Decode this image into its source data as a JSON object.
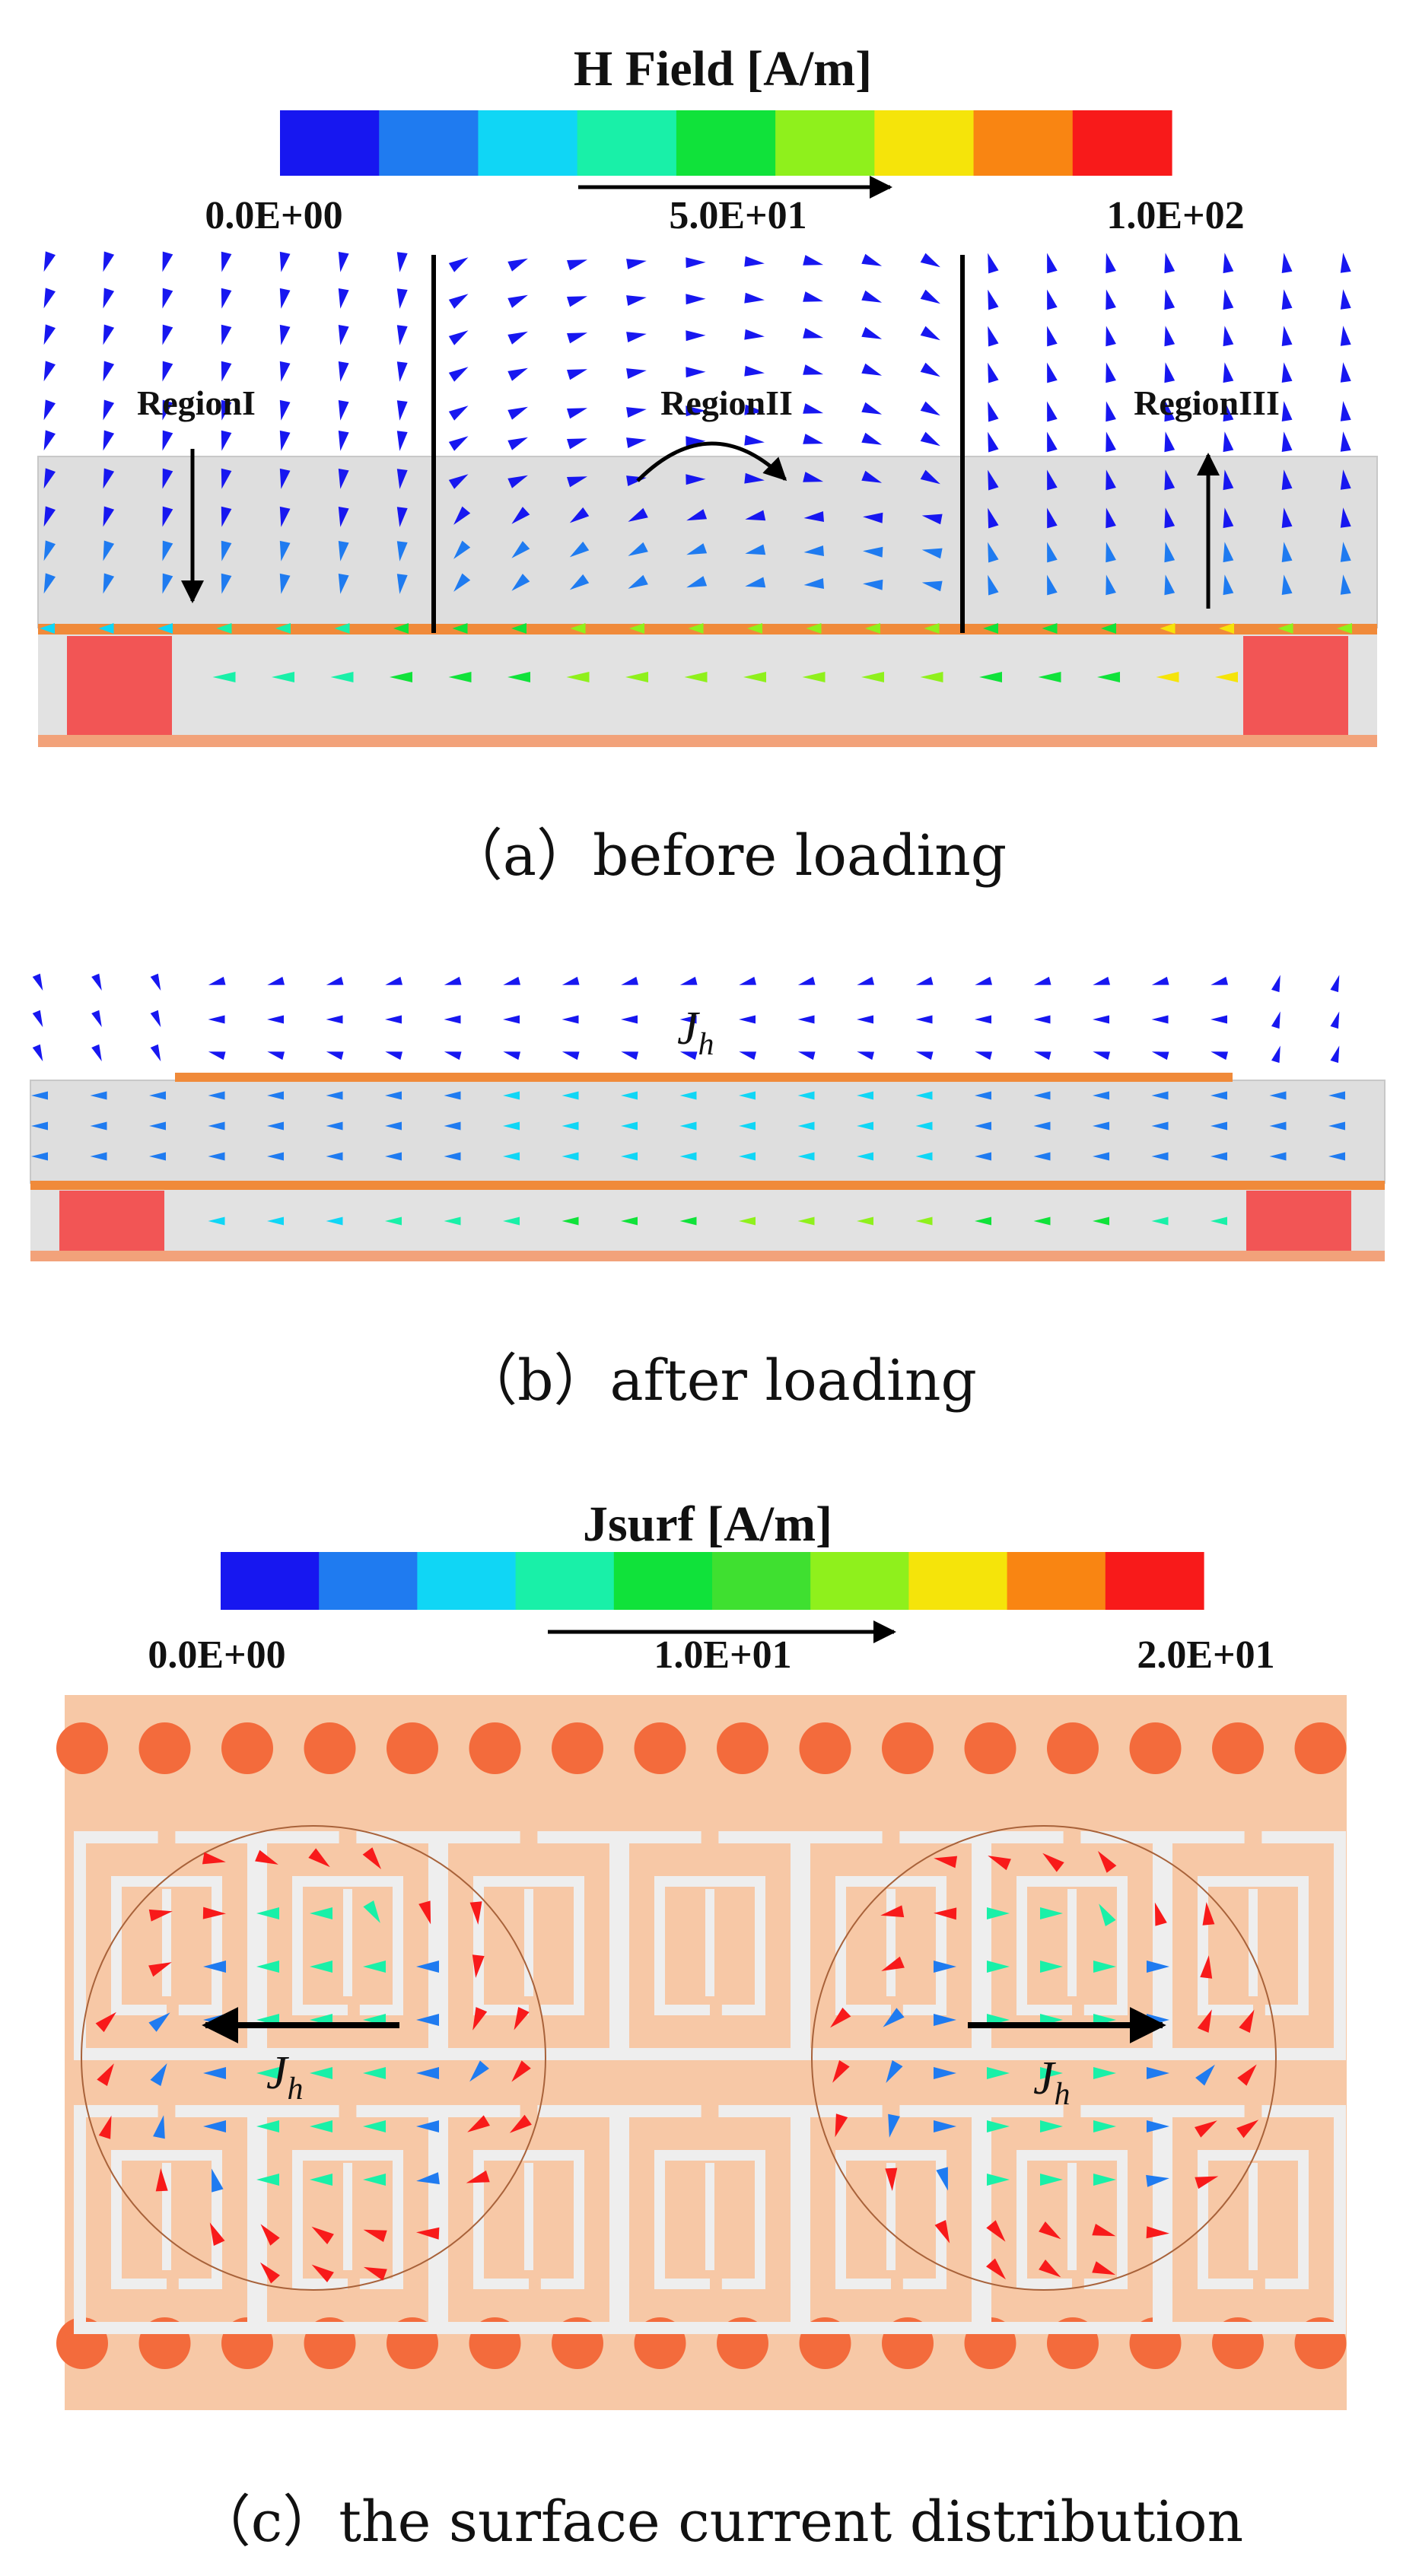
{
  "panel_a": {
    "colorbar": {
      "title": "H Field [A/m]",
      "tick_labels": [
        "0.0E+00",
        "5.0E+01",
        "1.0E+02"
      ],
      "colors": [
        "#1717f0",
        "#1f7bf0",
        "#10d6f5",
        "#19f0a8",
        "#10e23a",
        "#8ff01c",
        "#f5e40a",
        "#f98512",
        "#f81a1a"
      ]
    },
    "regions": [
      "RegionI",
      "RegionII",
      "RegionIII"
    ],
    "caption": "（a）before loading"
  },
  "panel_b": {
    "current_label": "J",
    "current_sub": "h",
    "caption": "（b）after loading"
  },
  "panel_c": {
    "colorbar": {
      "title": "Jsurf [A/m]",
      "tick_labels": [
        "0.0E+00",
        "1.0E+01",
        "2.0E+01"
      ],
      "colors": [
        "#1717f0",
        "#1f7bf0",
        "#10d6f5",
        "#19f0a8",
        "#10e23a",
        "#3fe030",
        "#8ff01c",
        "#f5e40a",
        "#f98512",
        "#f81a1a"
      ]
    },
    "current_label": "J",
    "current_sub": "h",
    "caption": "（c）the surface current distribution"
  },
  "colors": {
    "dielectric": "#dedede",
    "metal": "#f2a27a",
    "metal_strip": "#f08a3a",
    "pillar": "#f25555",
    "substrate": "#f7c8a6",
    "via": "#f36b3c",
    "srr": "#eeeeee"
  }
}
